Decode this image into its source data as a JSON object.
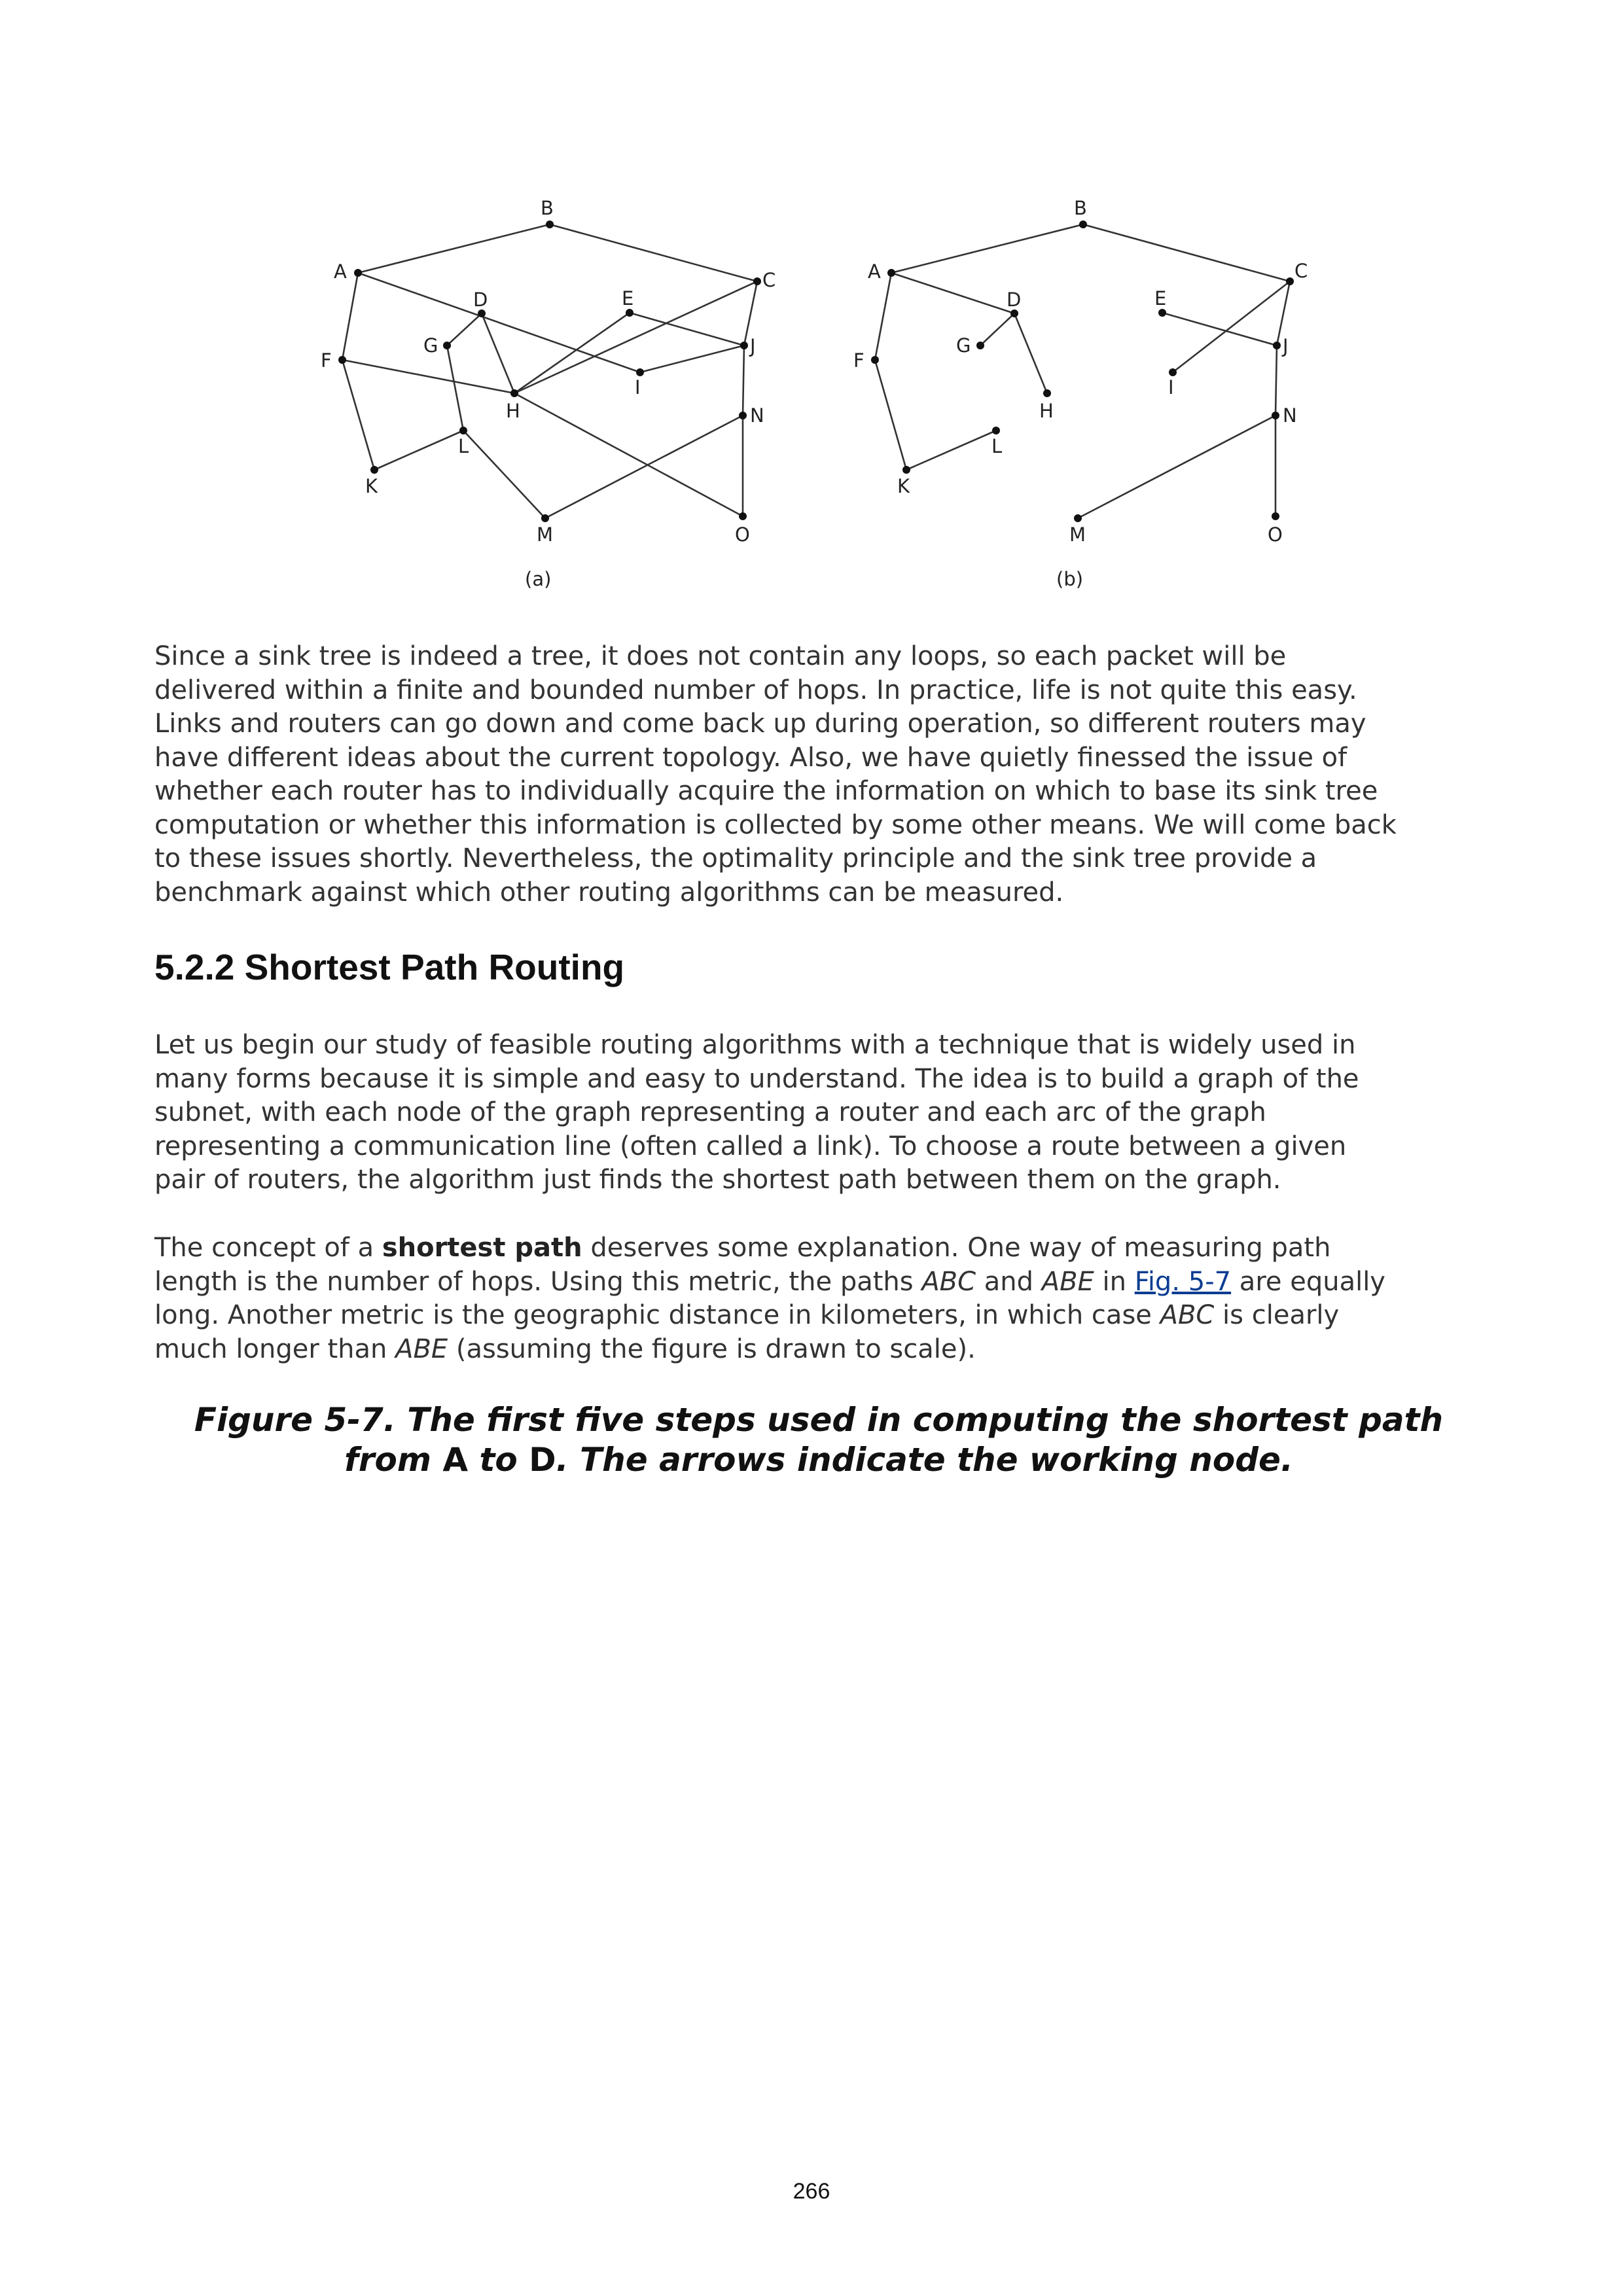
{
  "figure": {
    "panel_a_label": "(a)",
    "panel_b_label": "(b)",
    "node_labels": [
      "A",
      "B",
      "C",
      "D",
      "E",
      "F",
      "G",
      "H",
      "I",
      "J",
      "K",
      "L",
      "M",
      "N",
      "O"
    ]
  },
  "paragraph1": [
    "Since a sink tree is indeed a tree, it does not contain any loops, so each packet will be",
    "delivered within a finite and bounded number of hops. In practice, life is not quite this easy.",
    "Links and routers can go down and come back up during operation, so different routers may",
    "have different ideas about the current topology. Also, we have quietly finessed the issue of",
    "whether each router has to individually acquire the information on which to base its sink tree",
    "computation or whether this information is collected by some other means. We will come back",
    "to these issues shortly. Nevertheless, the optimality principle and the sink tree provide a",
    "benchmark against which other routing algorithms can be measured."
  ],
  "heading": "5.2.2 Shortest Path Routing",
  "paragraph2": [
    "Let us begin our study of feasible routing algorithms with a technique that is widely used in",
    "many forms because it is simple and easy to understand. The idea is to build a graph of the",
    "subnet, with each node of the graph representing a router and each arc of the graph",
    "representing a communication line (often called a link). To choose a route between a given",
    "pair of routers, the algorithm just finds the shortest path between them on the graph."
  ],
  "paragraph3": {
    "l1_pre": "The concept of a ",
    "l1_bold": "shortest path",
    "l1_post": " deserves some explanation. One way of measuring path",
    "l2_a": "length is the number of hops. Using this metric, the paths ",
    "l2_i1": "ABC",
    "l2_b": " and ",
    "l2_i2": "ABE",
    "l2_c": " in ",
    "l2_link": "Fig. 5-7",
    "l2_d": " are equally",
    "l3_a": "long. Another metric is the geographic distance in kilometers, in which case ",
    "l3_i": "ABC",
    "l3_b": " is clearly",
    "l4_a": "much longer than ",
    "l4_i": "ABE",
    "l4_b": " (assuming the figure is drawn to scale)."
  },
  "caption": {
    "line1": "Figure 5-7. The first five steps used in computing the shortest path",
    "l2_a": "from ",
    "l2_from": "A",
    "l2_b": " to ",
    "l2_to": "D",
    "l2_c": ". The arrows indicate the working node."
  },
  "page_number": "266"
}
